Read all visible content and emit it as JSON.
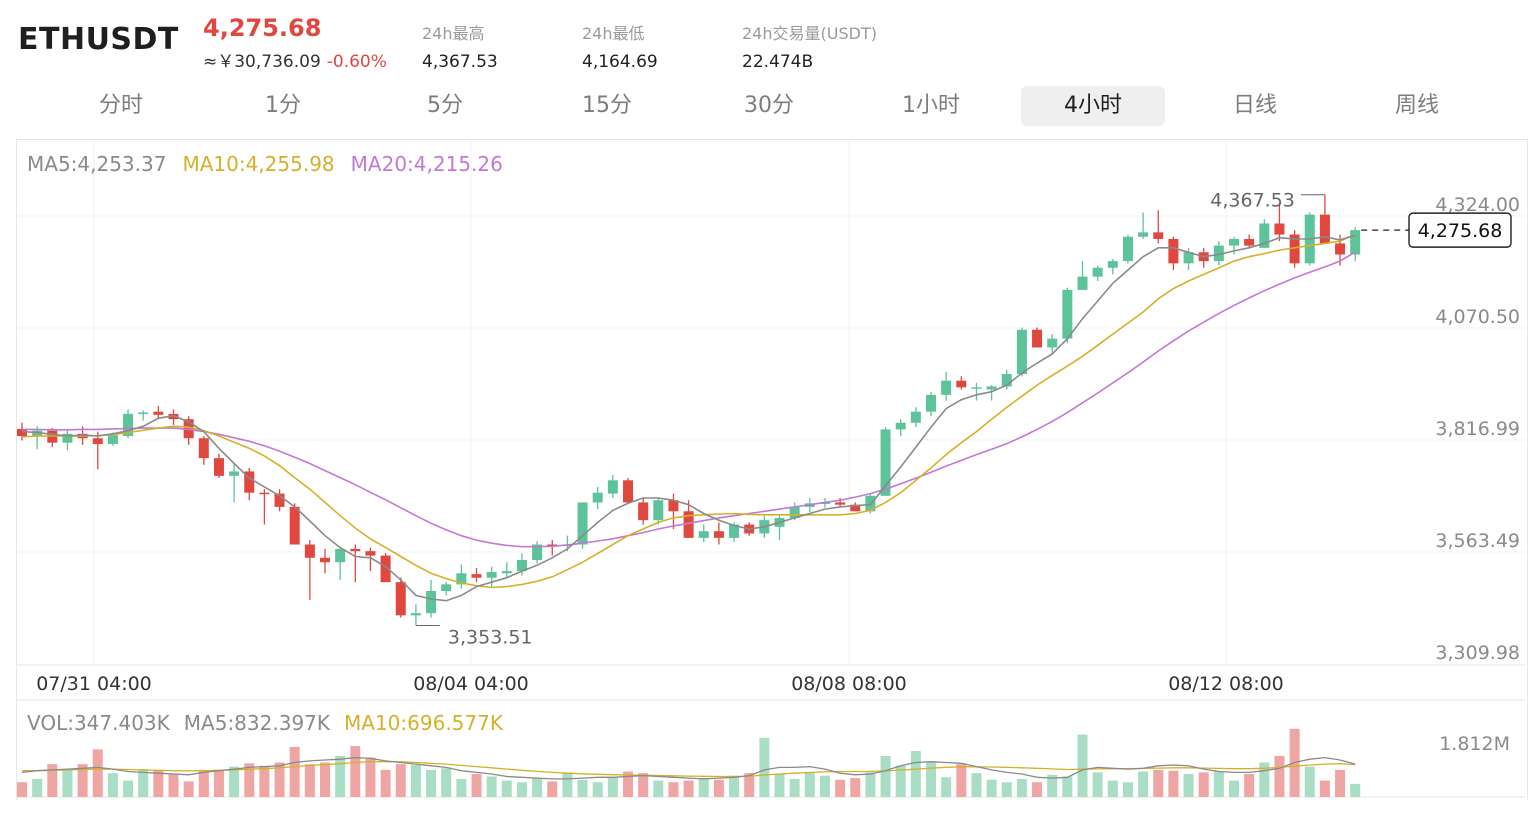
{
  "header": {
    "symbol": "ETHUSDT",
    "price": "4,275.68",
    "cny_value": "≈￥30,736.09",
    "change_pct": "-0.60%",
    "stats": [
      {
        "label": "24h最高",
        "value": "4,367.53"
      },
      {
        "label": "24h最低",
        "value": "4,164.69"
      },
      {
        "label": "24h交易量(USDT)",
        "value": "22.474B"
      }
    ]
  },
  "tabs": [
    "分时",
    "1分",
    "5分",
    "15分",
    "30分",
    "1小时",
    "4小时",
    "日线",
    "周线"
  ],
  "active_tab": "4小时",
  "legend": {
    "ma5": "MA5:4,253.37",
    "ma10": "MA10:4,255.98",
    "ma20": "MA20:4,215.26",
    "vol": "VOL:347.403K",
    "vol_ma5": "MA5:832.397K",
    "vol_ma10": "MA10:696.577K"
  },
  "colors": {
    "up": "#5cc39a",
    "down": "#e0473f",
    "ma5": "#8a8a8a",
    "ma10": "#d4b12a",
    "ma20": "#c07ad6",
    "vol_up": "#a9dec5",
    "vol_down": "#f0a5a5"
  },
  "chart_data": {
    "type": "candlestick",
    "y_ticks": [
      "4,324.00",
      "4,070.50",
      "3,816.99",
      "3,563.49",
      "3,309.98"
    ],
    "ylim": [
      3309.98,
      4324.0
    ],
    "x_ticks": [
      "07/31 04:00",
      "08/04 04:00",
      "08/08 08:00",
      "08/12 08:00"
    ],
    "current_price_label": "4,275.68",
    "max_label": "4,367.53",
    "min_label": "3,353.51",
    "volume_axis_label": "1.812M",
    "candles": [
      {
        "o": 3816,
        "h": 3830,
        "l": 3790,
        "c": 3800
      },
      {
        "o": 3800,
        "h": 3822,
        "l": 3770,
        "c": 3812
      },
      {
        "o": 3812,
        "h": 3818,
        "l": 3775,
        "c": 3785
      },
      {
        "o": 3785,
        "h": 3815,
        "l": 3768,
        "c": 3805
      },
      {
        "o": 3805,
        "h": 3822,
        "l": 3780,
        "c": 3795
      },
      {
        "o": 3795,
        "h": 3810,
        "l": 3725,
        "c": 3782
      },
      {
        "o": 3782,
        "h": 3808,
        "l": 3778,
        "c": 3802
      },
      {
        "o": 3800,
        "h": 3860,
        "l": 3795,
        "c": 3850
      },
      {
        "o": 3850,
        "h": 3858,
        "l": 3835,
        "c": 3853
      },
      {
        "o": 3855,
        "h": 3868,
        "l": 3840,
        "c": 3848
      },
      {
        "o": 3850,
        "h": 3860,
        "l": 3825,
        "c": 3838
      },
      {
        "o": 3838,
        "h": 3845,
        "l": 3780,
        "c": 3795
      },
      {
        "o": 3795,
        "h": 3800,
        "l": 3735,
        "c": 3750
      },
      {
        "o": 3750,
        "h": 3760,
        "l": 3705,
        "c": 3710
      },
      {
        "o": 3710,
        "h": 3740,
        "l": 3650,
        "c": 3720
      },
      {
        "o": 3720,
        "h": 3728,
        "l": 3655,
        "c": 3672
      },
      {
        "o": 3672,
        "h": 3680,
        "l": 3600,
        "c": 3670
      },
      {
        "o": 3670,
        "h": 3680,
        "l": 3630,
        "c": 3640
      },
      {
        "o": 3640,
        "h": 3648,
        "l": 3555,
        "c": 3555
      },
      {
        "o": 3555,
        "h": 3565,
        "l": 3430,
        "c": 3525
      },
      {
        "o": 3525,
        "h": 3545,
        "l": 3490,
        "c": 3515
      },
      {
        "o": 3515,
        "h": 3548,
        "l": 3475,
        "c": 3545
      },
      {
        "o": 3545,
        "h": 3555,
        "l": 3470,
        "c": 3540
      },
      {
        "o": 3540,
        "h": 3548,
        "l": 3495,
        "c": 3530
      },
      {
        "o": 3530,
        "h": 3536,
        "l": 3470,
        "c": 3470
      },
      {
        "o": 3470,
        "h": 3480,
        "l": 3390,
        "c": 3395
      },
      {
        "o": 3395,
        "h": 3420,
        "l": 3372,
        "c": 3400
      },
      {
        "o": 3400,
        "h": 3475,
        "l": 3390,
        "c": 3450
      },
      {
        "o": 3450,
        "h": 3470,
        "l": 3440,
        "c": 3465
      },
      {
        "o": 3465,
        "h": 3510,
        "l": 3455,
        "c": 3490
      },
      {
        "o": 3488,
        "h": 3502,
        "l": 3470,
        "c": 3480
      },
      {
        "o": 3480,
        "h": 3505,
        "l": 3460,
        "c": 3493
      },
      {
        "o": 3490,
        "h": 3515,
        "l": 3480,
        "c": 3495
      },
      {
        "o": 3495,
        "h": 3535,
        "l": 3485,
        "c": 3520
      },
      {
        "o": 3520,
        "h": 3562,
        "l": 3512,
        "c": 3555
      },
      {
        "o": 3555,
        "h": 3565,
        "l": 3530,
        "c": 3552
      },
      {
        "o": 3552,
        "h": 3575,
        "l": 3540,
        "c": 3555
      },
      {
        "o": 3555,
        "h": 3650,
        "l": 3545,
        "c": 3650
      },
      {
        "o": 3650,
        "h": 3685,
        "l": 3635,
        "c": 3672
      },
      {
        "o": 3670,
        "h": 3712,
        "l": 3660,
        "c": 3700
      },
      {
        "o": 3700,
        "h": 3705,
        "l": 3650,
        "c": 3650
      },
      {
        "o": 3650,
        "h": 3660,
        "l": 3600,
        "c": 3610
      },
      {
        "o": 3610,
        "h": 3660,
        "l": 3600,
        "c": 3655
      },
      {
        "o": 3655,
        "h": 3670,
        "l": 3590,
        "c": 3630
      },
      {
        "o": 3630,
        "h": 3655,
        "l": 3570,
        "c": 3570
      },
      {
        "o": 3570,
        "h": 3600,
        "l": 3560,
        "c": 3585
      },
      {
        "o": 3585,
        "h": 3605,
        "l": 3555,
        "c": 3570
      },
      {
        "o": 3570,
        "h": 3605,
        "l": 3560,
        "c": 3600
      },
      {
        "o": 3600,
        "h": 3605,
        "l": 3575,
        "c": 3580
      },
      {
        "o": 3580,
        "h": 3620,
        "l": 3570,
        "c": 3610
      },
      {
        "o": 3595,
        "h": 3620,
        "l": 3565,
        "c": 3615
      },
      {
        "o": 3615,
        "h": 3650,
        "l": 3610,
        "c": 3640
      },
      {
        "o": 3640,
        "h": 3660,
        "l": 3628,
        "c": 3648
      },
      {
        "o": 3648,
        "h": 3660,
        "l": 3638,
        "c": 3650
      },
      {
        "o": 3650,
        "h": 3660,
        "l": 3640,
        "c": 3645
      },
      {
        "o": 3645,
        "h": 3650,
        "l": 3630,
        "c": 3630
      },
      {
        "o": 3630,
        "h": 3670,
        "l": 3625,
        "c": 3665
      },
      {
        "o": 3665,
        "h": 3820,
        "l": 3665,
        "c": 3815
      },
      {
        "o": 3815,
        "h": 3838,
        "l": 3800,
        "c": 3830
      },
      {
        "o": 3830,
        "h": 3865,
        "l": 3820,
        "c": 3855
      },
      {
        "o": 3855,
        "h": 3900,
        "l": 3845,
        "c": 3893
      },
      {
        "o": 3893,
        "h": 3945,
        "l": 3880,
        "c": 3925
      },
      {
        "o": 3925,
        "h": 3935,
        "l": 3905,
        "c": 3910
      },
      {
        "o": 3910,
        "h": 3920,
        "l": 3880,
        "c": 3910
      },
      {
        "o": 3905,
        "h": 3915,
        "l": 3880,
        "c": 3912
      },
      {
        "o": 3912,
        "h": 3950,
        "l": 3905,
        "c": 3940
      },
      {
        "o": 3940,
        "h": 4045,
        "l": 3935,
        "c": 4040
      },
      {
        "o": 4040,
        "h": 4045,
        "l": 4000,
        "c": 4000
      },
      {
        "o": 4000,
        "h": 4030,
        "l": 3985,
        "c": 4020
      },
      {
        "o": 4020,
        "h": 4135,
        "l": 4010,
        "c": 4130
      },
      {
        "o": 4130,
        "h": 4195,
        "l": 4130,
        "c": 4160
      },
      {
        "o": 4160,
        "h": 4185,
        "l": 4150,
        "c": 4180
      },
      {
        "o": 4180,
        "h": 4200,
        "l": 4165,
        "c": 4195
      },
      {
        "o": 4195,
        "h": 4255,
        "l": 4190,
        "c": 4250
      },
      {
        "o": 4250,
        "h": 4305,
        "l": 4245,
        "c": 4260
      },
      {
        "o": 4260,
        "h": 4310,
        "l": 4235,
        "c": 4245
      },
      {
        "o": 4245,
        "h": 4250,
        "l": 4175,
        "c": 4190
      },
      {
        "o": 4190,
        "h": 4225,
        "l": 4175,
        "c": 4215
      },
      {
        "o": 4215,
        "h": 4225,
        "l": 4180,
        "c": 4195
      },
      {
        "o": 4195,
        "h": 4240,
        "l": 4185,
        "c": 4230
      },
      {
        "o": 4230,
        "h": 4250,
        "l": 4210,
        "c": 4245
      },
      {
        "o": 4245,
        "h": 4255,
        "l": 4225,
        "c": 4230
      },
      {
        "o": 4225,
        "h": 4290,
        "l": 4225,
        "c": 4280
      },
      {
        "o": 4280,
        "h": 4325,
        "l": 4240,
        "c": 4255
      },
      {
        "o": 4255,
        "h": 4265,
        "l": 4180,
        "c": 4190
      },
      {
        "o": 4190,
        "h": 4305,
        "l": 4185,
        "c": 4300
      },
      {
        "o": 4300,
        "h": 4345,
        "l": 4235,
        "c": 4235
      },
      {
        "o": 4235,
        "h": 4255,
        "l": 4185,
        "c": 4210
      },
      {
        "o": 4210,
        "h": 4272,
        "l": 4195,
        "c": 4265
      }
    ],
    "ma5": [
      3810,
      3808,
      3804,
      3800,
      3802,
      3800,
      3805,
      3812,
      3822,
      3840,
      3846,
      3832,
      3810,
      3772,
      3738,
      3705,
      3685,
      3665,
      3640,
      3608,
      3575,
      3548,
      3528,
      3525,
      3505,
      3475,
      3440,
      3432,
      3428,
      3440,
      3460,
      3470,
      3480,
      3495,
      3508,
      3525,
      3545,
      3575,
      3605,
      3632,
      3648,
      3660,
      3660,
      3655,
      3645,
      3625,
      3610,
      3598,
      3590,
      3595,
      3605,
      3615,
      3625,
      3635,
      3640,
      3643,
      3645,
      3688,
      3730,
      3775,
      3820,
      3862,
      3882,
      3893,
      3900,
      3915,
      3942,
      3965,
      3985,
      4020,
      4065,
      4105,
      4145,
      4175,
      4205,
      4225,
      4225,
      4215,
      4205,
      4210,
      4218,
      4225,
      4235,
      4248,
      4245,
      4245,
      4250,
      4243,
      4253.37
    ],
    "ma10": [
      3798,
      3800,
      3800,
      3800,
      3800,
      3801,
      3803,
      3808,
      3813,
      3818,
      3822,
      3820,
      3812,
      3800,
      3786,
      3772,
      3755,
      3733,
      3706,
      3680,
      3650,
      3620,
      3592,
      3568,
      3548,
      3528,
      3508,
      3490,
      3478,
      3468,
      3462,
      3458,
      3460,
      3465,
      3472,
      3482,
      3498,
      3515,
      3535,
      3555,
      3575,
      3590,
      3605,
      3615,
      3620,
      3622,
      3624,
      3625,
      3623,
      3622,
      3622,
      3622,
      3622,
      3622,
      3622,
      3625,
      3632,
      3650,
      3672,
      3700,
      3728,
      3758,
      3785,
      3810,
      3838,
      3865,
      3890,
      3915,
      3937,
      3958,
      3980,
      4005,
      4030,
      4055,
      4080,
      4110,
      4133,
      4150,
      4165,
      4180,
      4195,
      4205,
      4212,
      4220,
      4225,
      4230,
      4235,
      4240,
      4255.98
    ],
    "ma20": [
      3815,
      3815,
      3814,
      3814,
      3815,
      3815,
      3816,
      3817,
      3818,
      3818,
      3818,
      3815,
      3810,
      3804,
      3796,
      3788,
      3778,
      3766,
      3752,
      3738,
      3722,
      3706,
      3690,
      3673,
      3656,
      3638,
      3620,
      3603,
      3588,
      3575,
      3565,
      3558,
      3553,
      3550,
      3550,
      3551,
      3554,
      3558,
      3563,
      3568,
      3575,
      3582,
      3590,
      3597,
      3603,
      3609,
      3615,
      3620,
      3625,
      3630,
      3635,
      3640,
      3645,
      3650,
      3655,
      3662,
      3670,
      3680,
      3692,
      3705,
      3718,
      3732,
      3745,
      3758,
      3770,
      3783,
      3798,
      3815,
      3833,
      3853,
      3875,
      3897,
      3920,
      3943,
      3967,
      3992,
      4015,
      4037,
      4057,
      4077,
      4095,
      4112,
      4128,
      4143,
      4157,
      4170,
      4182,
      4195,
      4215.26
    ]
  },
  "volume_data": {
    "values": [
      180,
      220,
      400,
      330,
      400,
      580,
      290,
      200,
      340,
      330,
      280,
      190,
      330,
      330,
      370,
      410,
      380,
      420,
      610,
      400,
      420,
      500,
      620,
      480,
      330,
      400,
      390,
      330,
      350,
      220,
      280,
      250,
      200,
      180,
      230,
      190,
      300,
      210,
      180,
      240,
      310,
      290,
      200,
      180,
      200,
      230,
      210,
      260,
      290,
      720,
      280,
      220,
      300,
      260,
      210,
      230,
      300,
      500,
      380,
      560,
      430,
      240,
      400,
      290,
      210,
      180,
      220,
      180,
      270,
      250,
      760,
      300,
      200,
      180,
      310,
      330,
      320,
      280,
      300,
      310,
      200,
      280,
      420,
      500,
      830,
      370,
      200,
      330,
      160
    ],
    "ma5": [
      300,
      320,
      330,
      340,
      350,
      360,
      340,
      310,
      300,
      290,
      280,
      270,
      300,
      320,
      340,
      360,
      370,
      380,
      420,
      440,
      450,
      460,
      480,
      470,
      440,
      420,
      400,
      380,
      360,
      320,
      300,
      280,
      250,
      240,
      230,
      220,
      220,
      230,
      240,
      240,
      250,
      260,
      250,
      240,
      230,
      220,
      230,
      240,
      260,
      330,
      360,
      360,
      370,
      340,
      290,
      270,
      280,
      320,
      380,
      420,
      430,
      420,
      410,
      370,
      330,
      300,
      280,
      240,
      230,
      240,
      330,
      360,
      350,
      340,
      350,
      380,
      390,
      380,
      340,
      310,
      300,
      300,
      320,
      350,
      420,
      460,
      480,
      450,
      400
    ],
    "ma10": [
      320,
      320,
      325,
      330,
      335,
      340,
      340,
      335,
      330,
      325,
      320,
      318,
      320,
      325,
      330,
      338,
      345,
      355,
      370,
      385,
      395,
      405,
      420,
      430,
      430,
      428,
      420,
      410,
      400,
      385,
      370,
      355,
      340,
      325,
      312,
      300,
      290,
      282,
      276,
      272,
      268,
      265,
      262,
      258,
      255,
      252,
      250,
      250,
      252,
      268,
      280,
      290,
      298,
      305,
      310,
      310,
      312,
      318,
      328,
      340,
      352,
      362,
      368,
      368,
      365,
      362,
      356,
      350,
      342,
      335,
      338,
      342,
      345,
      345,
      348,
      352,
      355,
      356,
      352,
      348,
      345,
      345,
      350,
      360,
      375,
      390,
      400,
      405,
      395
    ]
  }
}
